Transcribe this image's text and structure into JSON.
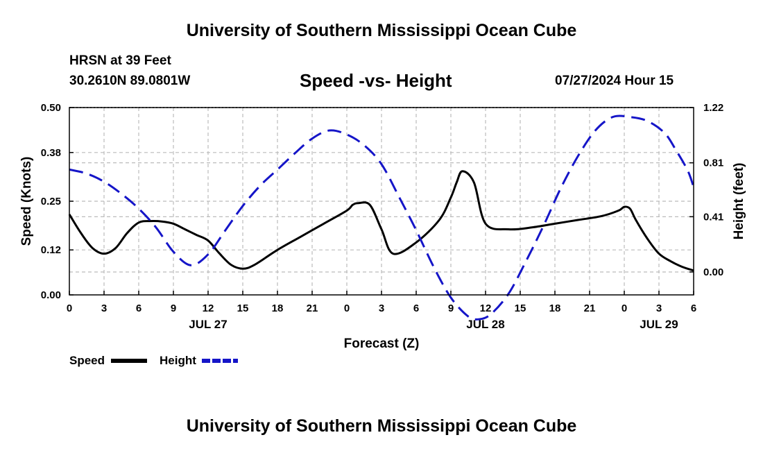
{
  "header": {
    "title": "University of Southern Mississippi Ocean Cube",
    "station": "HRSN at 39 Feet",
    "coords": "30.2610N  89.0801W",
    "chart_title": "Speed -vs- Height",
    "timestamp": "07/27/2024 Hour 15"
  },
  "footer": {
    "title": "University of Southern Mississippi Ocean Cube"
  },
  "colors": {
    "speed": "#000000",
    "height": "#1515c8",
    "grid": "#bbbbbb"
  },
  "chart_data": {
    "type": "line",
    "title": "Speed -vs- Height",
    "xlabel": "Forecast (Z)",
    "ylabel": "Speed (Knots)",
    "y2label": "Height (feet)",
    "x_range": [
      0,
      54
    ],
    "x_ticks": [
      0,
      3,
      6,
      9,
      12,
      15,
      18,
      21,
      24,
      27,
      30,
      33,
      36,
      39,
      42,
      45,
      48,
      51,
      54
    ],
    "x_tick_labels": [
      "0",
      "3",
      "6",
      "9",
      "12",
      "15",
      "18",
      "21",
      "0",
      "3",
      "6",
      "9",
      "12",
      "15",
      "18",
      "21",
      "0",
      "3",
      "6"
    ],
    "date_labels": [
      {
        "x": 12,
        "label": "JUL 27"
      },
      {
        "x": 36,
        "label": "JUL 28"
      },
      {
        "x": 51,
        "label": "JUL 29"
      }
    ],
    "ylim": [
      0,
      0.5
    ],
    "y_ticks": [
      0,
      0.12,
      0.25,
      0.38,
      0.5
    ],
    "y_tick_labels": [
      "0.00",
      "0.12",
      "0.25",
      "0.38",
      "0.50"
    ],
    "y2lim": [
      -0.17,
      1.22
    ],
    "y2_ticks": [
      0.0,
      0.41,
      0.81,
      1.22
    ],
    "y2_tick_labels": [
      "0.00",
      "0.41",
      "0.81",
      "1.22"
    ],
    "grid": true,
    "legend": [
      {
        "label": "Speed",
        "style": "solid"
      },
      {
        "label": "Height",
        "style": "dashed"
      }
    ],
    "series": [
      {
        "name": "Speed",
        "axis": "left",
        "style": "solid",
        "x": [
          0,
          1,
          2,
          3,
          4,
          5,
          6,
          7,
          8,
          9,
          10,
          11,
          12,
          13,
          14,
          15,
          16,
          18,
          20,
          22,
          24,
          24.5,
          25,
          26,
          27,
          28,
          30,
          32,
          33,
          33.5,
          34,
          35,
          36,
          38,
          40,
          42,
          44,
          46,
          47.5,
          48,
          48.5,
          49,
          50,
          51,
          52,
          53,
          54
        ],
        "y": [
          0.215,
          0.165,
          0.125,
          0.11,
          0.125,
          0.165,
          0.193,
          0.197,
          0.196,
          0.19,
          0.175,
          0.16,
          0.145,
          0.11,
          0.08,
          0.07,
          0.08,
          0.12,
          0.155,
          0.19,
          0.225,
          0.24,
          0.245,
          0.24,
          0.175,
          0.11,
          0.14,
          0.2,
          0.26,
          0.3,
          0.33,
          0.3,
          0.19,
          0.175,
          0.18,
          0.19,
          0.2,
          0.21,
          0.225,
          0.235,
          0.23,
          0.2,
          0.15,
          0.11,
          0.09,
          0.075,
          0.065
        ]
      },
      {
        "name": "Height",
        "axis": "right",
        "style": "dashed",
        "x": [
          0,
          1.5,
          3,
          4.5,
          6,
          7.5,
          9,
          10.5,
          12,
          13.5,
          15,
          16.5,
          18,
          19.5,
          21,
          22.5,
          24,
          25.5,
          27,
          28.5,
          30,
          31.5,
          33,
          34.5,
          35.5,
          36.5,
          38,
          39.5,
          41,
          42.5,
          44,
          45.5,
          47,
          48.5,
          50,
          51.5,
          52.5,
          53.5,
          54
        ],
        "y": [
          0.76,
          0.73,
          0.67,
          0.58,
          0.47,
          0.33,
          0.15,
          0.05,
          0.13,
          0.31,
          0.49,
          0.64,
          0.76,
          0.88,
          0.99,
          1.05,
          1.02,
          0.94,
          0.8,
          0.56,
          0.31,
          0.04,
          -0.19,
          -0.33,
          -0.35,
          -0.31,
          -0.16,
          0.08,
          0.34,
          0.62,
          0.86,
          1.05,
          1.15,
          1.15,
          1.12,
          1.03,
          0.9,
          0.75,
          0.63
        ]
      }
    ]
  }
}
